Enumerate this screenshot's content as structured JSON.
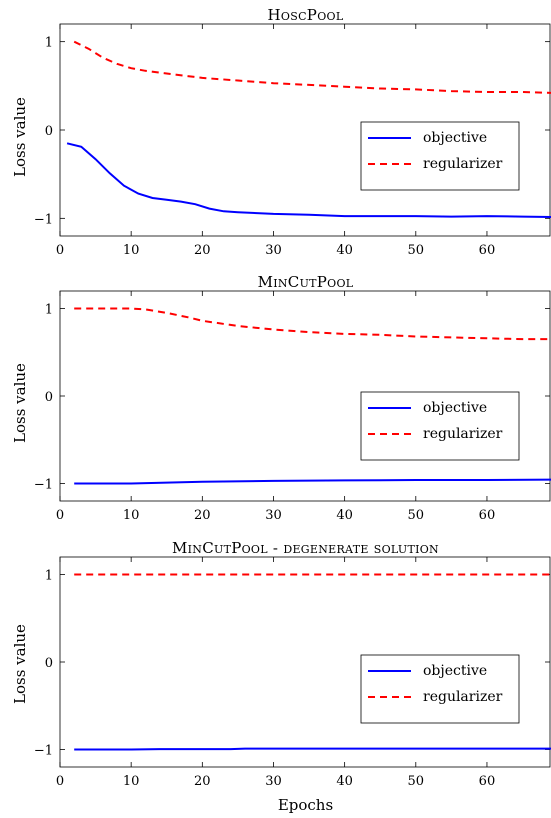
{
  "figure": {
    "xlabel": "Epochs",
    "ylabel": "Loss value"
  },
  "chart_data": [
    {
      "type": "line",
      "title": "HoscPool",
      "ylabel": "Loss value",
      "xlabel": "",
      "xlim": [
        0,
        69
      ],
      "ylim": [
        -1.2,
        1.2
      ],
      "xticks": [
        0,
        10,
        20,
        30,
        40,
        50,
        60
      ],
      "yticks": [
        -1,
        0,
        1
      ],
      "ytick_labels": [
        "−1",
        "0",
        "1"
      ],
      "legend_position": "center-right",
      "series": [
        {
          "name": "objective",
          "color": "#0000ff",
          "style": "solid",
          "x": [
            1,
            3,
            5,
            7,
            9,
            11,
            13,
            15,
            17,
            19,
            21,
            23,
            25,
            30,
            35,
            40,
            45,
            50,
            55,
            60,
            65,
            69
          ],
          "y": [
            -0.15,
            -0.19,
            -0.33,
            -0.49,
            -0.63,
            -0.72,
            -0.77,
            -0.79,
            -0.81,
            -0.84,
            -0.89,
            -0.92,
            -0.93,
            -0.95,
            -0.96,
            -0.975,
            -0.975,
            -0.975,
            -0.98,
            -0.975,
            -0.98,
            -0.985
          ]
        },
        {
          "name": "regularizer",
          "color": "#ff0000",
          "style": "dashed",
          "x": [
            2,
            4,
            6,
            8,
            10,
            12,
            15,
            20,
            25,
            30,
            35,
            40,
            45,
            50,
            55,
            60,
            65,
            69
          ],
          "y": [
            1.0,
            0.92,
            0.82,
            0.75,
            0.7,
            0.67,
            0.64,
            0.59,
            0.56,
            0.53,
            0.51,
            0.49,
            0.47,
            0.46,
            0.44,
            0.43,
            0.43,
            0.42
          ]
        }
      ]
    },
    {
      "type": "line",
      "title": "MinCutPool",
      "ylabel": "Loss value",
      "xlabel": "",
      "xlim": [
        0,
        69
      ],
      "ylim": [
        -1.2,
        1.2
      ],
      "xticks": [
        0,
        10,
        20,
        30,
        40,
        50,
        60
      ],
      "yticks": [
        -1,
        0,
        1
      ],
      "ytick_labels": [
        "−1",
        "0",
        "1"
      ],
      "legend_position": "center-right",
      "series": [
        {
          "name": "objective",
          "color": "#0000ff",
          "style": "solid",
          "x": [
            2,
            10,
            15,
            20,
            30,
            40,
            50,
            60,
            69
          ],
          "y": [
            -1.0,
            -1.0,
            -0.99,
            -0.98,
            -0.97,
            -0.965,
            -0.96,
            -0.96,
            -0.955
          ]
        },
        {
          "name": "regularizer",
          "color": "#ff0000",
          "style": "dashed",
          "x": [
            2,
            6,
            10,
            12,
            15,
            18,
            20,
            25,
            30,
            35,
            40,
            45,
            50,
            55,
            60,
            65,
            69
          ],
          "y": [
            1.0,
            1.0,
            1.0,
            0.99,
            0.95,
            0.9,
            0.86,
            0.8,
            0.76,
            0.73,
            0.71,
            0.7,
            0.68,
            0.67,
            0.66,
            0.65,
            0.65
          ]
        }
      ]
    },
    {
      "type": "line",
      "title": "MinCutPool - degenerate solution",
      "ylabel": "Loss value",
      "xlabel": "Epochs",
      "xlim": [
        0,
        69
      ],
      "ylim": [
        -1.2,
        1.2
      ],
      "xticks": [
        0,
        10,
        20,
        30,
        40,
        50,
        60
      ],
      "yticks": [
        -1,
        0,
        1
      ],
      "ytick_labels": [
        "−1",
        "0",
        "1"
      ],
      "legend_position": "center-right",
      "series": [
        {
          "name": "objective",
          "color": "#0000ff",
          "style": "solid",
          "x": [
            2,
            10,
            14,
            24,
            26,
            40,
            60,
            69
          ],
          "y": [
            -1.0,
            -1.0,
            -0.995,
            -0.995,
            -0.99,
            -0.99,
            -0.99,
            -0.99
          ]
        },
        {
          "name": "regularizer",
          "color": "#ff0000",
          "style": "dashed",
          "x": [
            2,
            20,
            40,
            60,
            69
          ],
          "y": [
            1.0,
            1.0,
            1.0,
            1.0,
            1.0
          ]
        }
      ]
    }
  ]
}
